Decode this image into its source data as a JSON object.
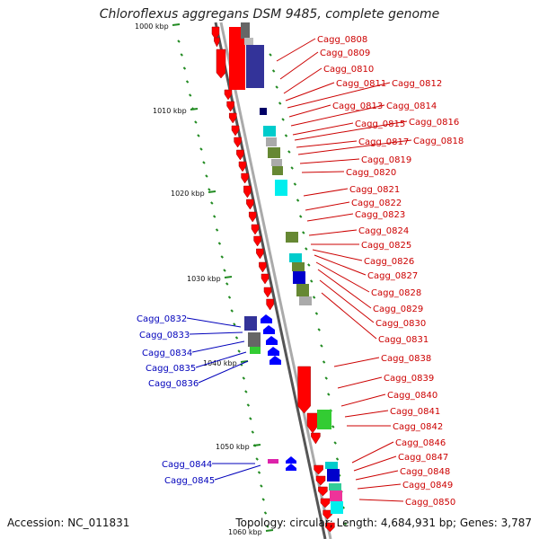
{
  "title": "Chloroflexus aggregans DSM 9485, complete genome",
  "accession": "Accession: NC_011831",
  "topology": "Topology: circular; Length: 4,684,931 bp; Genes: 3,787",
  "ticks": [
    {
      "label": "1000 kbp"
    },
    {
      "label": "1010 kbp"
    },
    {
      "label": "1020 kbp"
    },
    {
      "label": "1030 kbp"
    },
    {
      "label": "1040 kbp"
    },
    {
      "label": "1050 kbp"
    },
    {
      "label": "1060 kbp"
    }
  ],
  "right_labels": [
    "Cagg_0808",
    "Cagg_0809",
    "Cagg_0810",
    "Cagg_0811",
    "Cagg_0812",
    "Cagg_0813",
    "Cagg_0814",
    "Cagg_0815",
    "Cagg_0816",
    "Cagg_0817",
    "Cagg_0818",
    "Cagg_0819",
    "Cagg_0820",
    "Cagg_0821",
    "Cagg_0822",
    "Cagg_0823",
    "Cagg_0824",
    "Cagg_0825",
    "Cagg_0826",
    "Cagg_0827",
    "Cagg_0828",
    "Cagg_0829",
    "Cagg_0830",
    "Cagg_0831",
    "Cagg_0838",
    "Cagg_0839",
    "Cagg_0840",
    "Cagg_0841",
    "Cagg_0842",
    "Cagg_0846",
    "Cagg_0847",
    "Cagg_0848",
    "Cagg_0849",
    "Cagg_0850"
  ],
  "left_labels": [
    "Cagg_0832",
    "Cagg_0833",
    "Cagg_0834",
    "Cagg_0835",
    "Cagg_0836",
    "Cagg_0844",
    "Cagg_0845"
  ],
  "colors": {
    "forward_gene": "#ff0000",
    "reverse_gene": "#0000ff",
    "backbone": "#888888",
    "tick": "#228b22",
    "label_right": "#cc0000",
    "label_left": "#0000bb"
  }
}
